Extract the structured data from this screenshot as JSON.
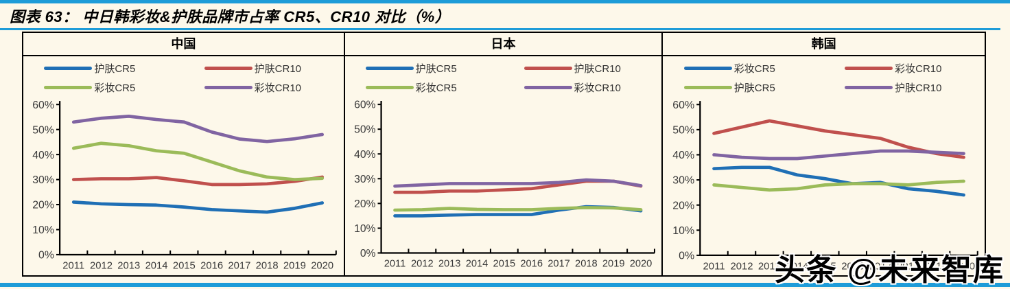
{
  "title": "图表 63：  中日韩彩妆&护肤品牌市占率 CR5、CR10 对比（%）",
  "watermark": "头条 @未来智库",
  "colors": {
    "accent_bar": "#1E9CD8",
    "panel_background": "#FDF8EA",
    "border": "#000000",
    "series_blue": "#1F6FB5",
    "series_red": "#C0504D",
    "series_green": "#9BBB59",
    "series_purple": "#8064A2",
    "tick_text": "#3A3A3A"
  },
  "panels": [
    {
      "header": "中国",
      "legend": [
        {
          "label": "护肤CR5",
          "color": "#1F6FB5"
        },
        {
          "label": "护肤CR10",
          "color": "#C0504D"
        },
        {
          "label": "彩妆CR5",
          "color": "#9BBB59"
        },
        {
          "label": "彩妆CR10",
          "color": "#8064A2"
        }
      ]
    },
    {
      "header": "日本",
      "legend": [
        {
          "label": "护肤CR5",
          "color": "#1F6FB5"
        },
        {
          "label": "护肤CR10",
          "color": "#C0504D"
        },
        {
          "label": "彩妆CR5",
          "color": "#9BBB59"
        },
        {
          "label": "彩妆CR10",
          "color": "#8064A2"
        }
      ]
    },
    {
      "header": "韩国",
      "legend": [
        {
          "label": "彩妆CR5",
          "color": "#1F6FB5"
        },
        {
          "label": "彩妆CR10",
          "color": "#C0504D"
        },
        {
          "label": "护肤CR5",
          "color": "#9BBB59"
        },
        {
          "label": "护肤CR10",
          "color": "#8064A2"
        }
      ]
    }
  ],
  "chart_data": [
    {
      "type": "line",
      "title": "中国",
      "x": [
        "2011",
        "2012",
        "2013",
        "2014",
        "2015",
        "2016",
        "2017",
        "2018",
        "2019",
        "2020"
      ],
      "ylim": [
        0,
        60
      ],
      "yticks": [
        0,
        10,
        20,
        30,
        40,
        50,
        60
      ],
      "ytick_suffix": "%",
      "grid": false,
      "legend_position": "top",
      "series": [
        {
          "name": "护肤CR5",
          "color": "#1F6FB5",
          "values": [
            21,
            20.3,
            20,
            19.8,
            19,
            18,
            17.5,
            17,
            18.5,
            20.7
          ]
        },
        {
          "name": "护肤CR10",
          "color": "#C0504D",
          "values": [
            30,
            30.3,
            30.3,
            30.8,
            29.5,
            28,
            28,
            28.3,
            29.3,
            31
          ]
        },
        {
          "name": "彩妆CR5",
          "color": "#9BBB59",
          "values": [
            42.5,
            44.5,
            43.5,
            41.5,
            40.5,
            37,
            33.5,
            31,
            30,
            30.5
          ]
        },
        {
          "name": "彩妆CR10",
          "color": "#8064A2",
          "values": [
            53,
            54.5,
            55.3,
            54,
            53,
            49,
            46.2,
            45.2,
            46.3,
            48
          ]
        }
      ]
    },
    {
      "type": "line",
      "title": "日本",
      "x": [
        "2011",
        "2012",
        "2013",
        "2014",
        "2015",
        "2016",
        "2017",
        "2018",
        "2019",
        "2020"
      ],
      "ylim": [
        0,
        60
      ],
      "yticks": [
        0,
        10,
        20,
        30,
        40,
        50,
        60
      ],
      "ytick_suffix": "%",
      "grid": false,
      "legend_position": "top",
      "series": [
        {
          "name": "护肤CR5",
          "color": "#1F6FB5",
          "values": [
            15,
            15,
            15.3,
            15.5,
            15.5,
            15.5,
            17.3,
            18.7,
            18.4,
            17
          ]
        },
        {
          "name": "护肤CR10",
          "color": "#C0504D",
          "values": [
            24.5,
            24.5,
            25,
            25,
            25.5,
            26,
            27.5,
            29,
            29,
            27
          ]
        },
        {
          "name": "彩妆CR5",
          "color": "#9BBB59",
          "values": [
            17.3,
            17.5,
            18,
            17.6,
            17.5,
            17.5,
            18,
            18.3,
            18.2,
            17.5
          ]
        },
        {
          "name": "彩妆CR10",
          "color": "#8064A2",
          "values": [
            27,
            27.5,
            28,
            28,
            28,
            28,
            28.5,
            29.5,
            29,
            27.2
          ]
        }
      ]
    },
    {
      "type": "line",
      "title": "韩国",
      "x": [
        "2011",
        "2012",
        "2013",
        "2014",
        "2015",
        "2016",
        "2017",
        "2018",
        "2019",
        "2020"
      ],
      "ylim": [
        0,
        60
      ],
      "yticks": [
        0,
        10,
        20,
        30,
        40,
        50,
        60
      ],
      "ytick_suffix": "%",
      "grid": false,
      "legend_position": "top",
      "series": [
        {
          "name": "彩妆CR5",
          "color": "#1F6FB5",
          "values": [
            34.5,
            35,
            35,
            32,
            30.5,
            28.5,
            29,
            26.5,
            25.5,
            24
          ]
        },
        {
          "name": "彩妆CR10",
          "color": "#C0504D",
          "values": [
            48.5,
            51,
            53.5,
            51.5,
            49.5,
            48,
            46.5,
            43,
            40.5,
            39
          ]
        },
        {
          "name": "护肤CR5",
          "color": "#9BBB59",
          "values": [
            28,
            27,
            26,
            26.5,
            28,
            28.5,
            28.5,
            28,
            29,
            29.5
          ]
        },
        {
          "name": "护肤CR10",
          "color": "#8064A2",
          "values": [
            40,
            39,
            38.5,
            38.5,
            39.5,
            40.5,
            41.5,
            41.5,
            41,
            40.5
          ]
        }
      ]
    }
  ]
}
